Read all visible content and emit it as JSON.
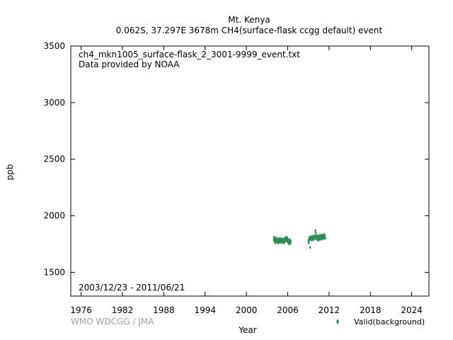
{
  "title": {
    "line1": "Mt. Kenya",
    "line2": "0.062S, 37.297E 3678m    CH4(surface-flask ccgg default) event"
  },
  "annotations": {
    "filename": "ch4_mkn1005_surface-flask_2_3001-9999_event.txt",
    "provider": "Data provided by NOAA",
    "date_range": "2003/12/23 - 2011/06/21",
    "credit": "WMO WDCGG / JMA"
  },
  "colors": {
    "series": "#2e8b57",
    "frame": "#000000",
    "credit": "#a0a0a0"
  },
  "chart_data": {
    "type": "scatter",
    "xlabel": "Year",
    "ylabel": "ppb",
    "xlim": [
      1974.5,
      2026.5
    ],
    "ylim": [
      1290,
      3500
    ],
    "xticks": [
      1976,
      1982,
      1988,
      1994,
      2000,
      2006,
      2012,
      2018,
      2024
    ],
    "yticks": [
      1500,
      2000,
      2500,
      3000,
      3500
    ],
    "legend_position": "bottom-right",
    "grid": false,
    "series": [
      {
        "name": "Valid(background)",
        "marker": "diamond",
        "points": [
          [
            2003.98,
            1790
          ],
          [
            2004.02,
            1812
          ],
          [
            2004.06,
            1775
          ],
          [
            2004.1,
            1800
          ],
          [
            2004.14,
            1768
          ],
          [
            2004.18,
            1785
          ],
          [
            2004.22,
            1760
          ],
          [
            2004.27,
            1795
          ],
          [
            2004.31,
            1778
          ],
          [
            2004.36,
            1805
          ],
          [
            2004.4,
            1770
          ],
          [
            2004.45,
            1788
          ],
          [
            2004.5,
            1765
          ],
          [
            2004.55,
            1780
          ],
          [
            2004.6,
            1758
          ],
          [
            2004.65,
            1792
          ],
          [
            2004.7,
            1772
          ],
          [
            2004.75,
            1800
          ],
          [
            2004.8,
            1783
          ],
          [
            2004.85,
            1764
          ],
          [
            2004.9,
            1790
          ],
          [
            2004.95,
            1775
          ],
          [
            2005.0,
            1798
          ],
          [
            2005.05,
            1768
          ],
          [
            2005.1,
            1785
          ],
          [
            2005.15,
            1762
          ],
          [
            2005.2,
            1790
          ],
          [
            2005.25,
            1778
          ],
          [
            2005.3,
            1795
          ],
          [
            2005.35,
            1770
          ],
          [
            2005.4,
            1783
          ],
          [
            2005.45,
            1760
          ],
          [
            2005.5,
            1788
          ],
          [
            2005.55,
            1800
          ],
          [
            2005.6,
            1772
          ],
          [
            2005.65,
            1790
          ],
          [
            2005.7,
            1805
          ],
          [
            2005.75,
            1778
          ],
          [
            2005.8,
            1795
          ],
          [
            2005.85,
            1812
          ],
          [
            2005.9,
            1783
          ],
          [
            2005.95,
            1800
          ],
          [
            2006.0,
            1770
          ],
          [
            2006.05,
            1790
          ],
          [
            2006.1,
            1760
          ],
          [
            2006.15,
            1785
          ],
          [
            2006.2,
            1750
          ],
          [
            2006.25,
            1778
          ],
          [
            2006.3,
            1765
          ],
          [
            2006.35,
            1788
          ],
          [
            2006.4,
            1758
          ],
          [
            2006.45,
            1772
          ],
          [
            2009.0,
            1780
          ],
          [
            2009.05,
            1760
          ],
          [
            2009.1,
            1795
          ],
          [
            2009.15,
            1810
          ],
          [
            2009.2,
            1785
          ],
          [
            2009.25,
            1720
          ],
          [
            2009.3,
            1805
          ],
          [
            2009.35,
            1792
          ],
          [
            2009.4,
            1815
          ],
          [
            2009.45,
            1800
          ],
          [
            2009.5,
            1785
          ],
          [
            2009.55,
            1808
          ],
          [
            2009.6,
            1795
          ],
          [
            2009.65,
            1820
          ],
          [
            2009.7,
            1800
          ],
          [
            2009.75,
            1788
          ],
          [
            2009.8,
            1812
          ],
          [
            2009.85,
            1798
          ],
          [
            2009.9,
            1825
          ],
          [
            2009.95,
            1805
          ],
          [
            2010.0,
            1870
          ],
          [
            2010.05,
            1850
          ],
          [
            2010.1,
            1815
          ],
          [
            2010.15,
            1795
          ],
          [
            2010.2,
            1828
          ],
          [
            2010.25,
            1808
          ],
          [
            2010.3,
            1790
          ],
          [
            2010.35,
            1820
          ],
          [
            2010.4,
            1800
          ],
          [
            2010.45,
            1783
          ],
          [
            2010.5,
            1815
          ],
          [
            2010.55,
            1798
          ],
          [
            2010.6,
            1825
          ],
          [
            2010.65,
            1805
          ],
          [
            2010.7,
            1790
          ],
          [
            2010.75,
            1818
          ],
          [
            2010.8,
            1800
          ],
          [
            2010.85,
            1830
          ],
          [
            2010.9,
            1808
          ],
          [
            2010.95,
            1795
          ],
          [
            2011.0,
            1822
          ],
          [
            2011.05,
            1805
          ],
          [
            2011.1,
            1830
          ],
          [
            2011.15,
            1812
          ],
          [
            2011.2,
            1798
          ],
          [
            2011.25,
            1825
          ],
          [
            2011.3,
            1808
          ],
          [
            2011.35,
            1835
          ],
          [
            2011.4,
            1815
          ],
          [
            2011.45,
            1800
          ]
        ]
      }
    ]
  }
}
